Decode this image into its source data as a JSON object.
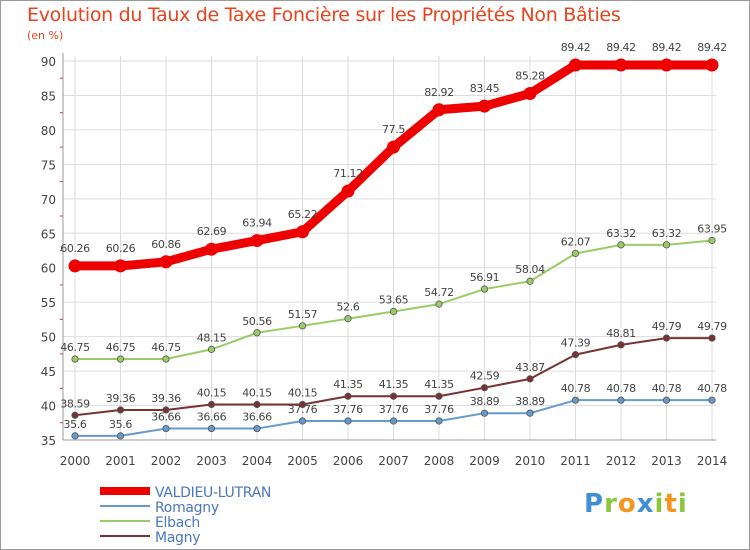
{
  "chart_data": {
    "type": "line",
    "title": "Evolution du Taux de Taxe Foncière sur les Propriétés Non Bâties",
    "ylabel": "(en %)",
    "xlabel": "",
    "ylim": [
      35,
      90
    ],
    "yticks": [
      35,
      40,
      45,
      50,
      55,
      60,
      65,
      70,
      75,
      80,
      85,
      90
    ],
    "grid": true,
    "legend_position": "bottom-left",
    "categories": [
      "2000",
      "2001",
      "2002",
      "2003",
      "2004",
      "2005",
      "2006",
      "2007",
      "2008",
      "2009",
      "2010",
      "2011",
      "2012",
      "2013",
      "2014"
    ],
    "series": [
      {
        "name": "VALDIEU-LUTRAN",
        "color": "#ee0000",
        "values": [
          60.26,
          60.26,
          60.86,
          62.69,
          63.94,
          65.22,
          71.12,
          77.5,
          82.92,
          83.45,
          85.28,
          89.42,
          89.42,
          89.42,
          89.42
        ],
        "labels": [
          "60.26",
          "60.26",
          "60.86",
          "62.69",
          "63.94",
          "65.22",
          "71.12",
          "77.5",
          "82.92",
          "83.45",
          "85.28",
          "89.42",
          "89.42",
          "89.42",
          "89.42"
        ]
      },
      {
        "name": "Romagny",
        "color": "#6699cc",
        "values": [
          35.6,
          35.6,
          36.66,
          36.66,
          36.66,
          37.76,
          37.76,
          37.76,
          37.76,
          38.89,
          38.89,
          40.78,
          40.78,
          40.78,
          40.78
        ],
        "labels": [
          "35.6",
          "35.6",
          "36.66",
          "36.66",
          "36.66",
          "37.76",
          "37.76",
          "37.76",
          "37.76",
          "38.89",
          "38.89",
          "40.78",
          "40.78",
          "40.78",
          "40.78"
        ]
      },
      {
        "name": "Elbach",
        "color": "#99cc66",
        "values": [
          46.75,
          46.75,
          46.75,
          48.15,
          50.56,
          51.57,
          52.6,
          53.65,
          54.72,
          56.91,
          58.04,
          62.07,
          63.32,
          63.32,
          63.95
        ],
        "labels": [
          "46.75",
          "46.75",
          "46.75",
          "48.15",
          "50.56",
          "51.57",
          "52.6",
          "53.65",
          "54.72",
          "56.91",
          "58.04",
          "62.07",
          "63.32",
          "63.32",
          "63.95"
        ]
      },
      {
        "name": "Magny",
        "color": "#773333",
        "values": [
          38.59,
          39.36,
          39.36,
          40.15,
          40.15,
          40.15,
          41.35,
          41.35,
          41.35,
          42.59,
          43.87,
          47.39,
          48.81,
          49.79,
          49.79
        ],
        "labels": [
          "38.59",
          "39.36",
          "39.36",
          "40.15",
          "40.15",
          "40.15",
          "41.35",
          "41.35",
          "41.35",
          "42.59",
          "43.87",
          "47.39",
          "48.81",
          "49.79",
          "49.79"
        ]
      }
    ]
  },
  "logo": {
    "letters": [
      "P",
      "r",
      "o",
      "x",
      "i",
      "t",
      "i"
    ],
    "colors": [
      "#3f8fd2",
      "#8cc63f",
      "#f7941d",
      "#3f8fd2",
      "#8cc63f",
      "#f7941d",
      "#8cc63f"
    ]
  }
}
